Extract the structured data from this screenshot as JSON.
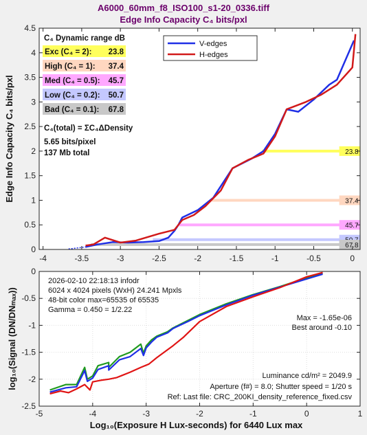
{
  "title_line1": "A6000_60mm_f8_ISO100_s1-20_0336.tiff",
  "title_line2": "Edge Info Capacity C₄ bits/pxl",
  "chart_data": [
    {
      "type": "line",
      "ylabel": "Edge Info Capacity C₄ bits/pxl",
      "xlim": [
        -4.05,
        0.1
      ],
      "ylim": [
        0,
        4.5
      ],
      "xticks": [
        "-4",
        "-3.5",
        "-3",
        "-2.5",
        "-2",
        "-1.5",
        "-1",
        "-0.5",
        "0"
      ],
      "yticks": [
        "0",
        "0.5",
        "1",
        "1.5",
        "2",
        "2.5",
        "3",
        "3.5",
        "4",
        "4.5"
      ],
      "legend": {
        "position": "top-right",
        "entries": [
          "V-edges",
          "H-edges"
        ]
      },
      "series": [
        {
          "name": "V-edges",
          "color": "#1f2fe6",
          "x": [
            -3.45,
            -3.3,
            -3.1,
            -2.9,
            -2.7,
            -2.5,
            -2.38,
            -2.3,
            -2.25,
            -2.2,
            -2.0,
            -1.8,
            -1.55,
            -1.3,
            -1.15,
            -1.0,
            -0.85,
            -0.7,
            -0.5,
            -0.3,
            -0.2,
            0.02
          ],
          "y": [
            0.05,
            0.1,
            0.15,
            0.14,
            0.15,
            0.17,
            0.24,
            0.38,
            0.5,
            0.65,
            0.8,
            1.05,
            1.65,
            1.85,
            2.0,
            2.35,
            2.85,
            2.8,
            3.05,
            3.35,
            3.45,
            4.25
          ]
        },
        {
          "name": "H-edges",
          "color": "#d11a1a",
          "x": [
            -3.45,
            -3.35,
            -3.2,
            -3.0,
            -2.8,
            -2.5,
            -2.3,
            -2.2,
            -2.05,
            -1.9,
            -1.7,
            -1.55,
            -1.35,
            -1.15,
            -1.0,
            -0.85,
            -0.6,
            -0.4,
            -0.2,
            0.0,
            0.04
          ],
          "y": [
            0.08,
            0.1,
            0.24,
            0.14,
            0.18,
            0.32,
            0.4,
            0.6,
            0.7,
            0.88,
            1.2,
            1.65,
            1.82,
            1.95,
            2.3,
            2.85,
            3.0,
            3.15,
            3.35,
            3.7,
            4.38
          ]
        }
      ],
      "dynamic_range": {
        "heading": "C₄ Dynamic range dB",
        "rows": [
          {
            "label": "Exc  (C₄ = 2):",
            "value": "23.8",
            "color": "#ffff5c",
            "level": 2,
            "x_start": -1.17
          },
          {
            "label": "High (C₄ = 1):",
            "value": "37.4",
            "color": "#ffd7c0",
            "level": 1,
            "x_start": -1.82
          },
          {
            "label": "Med  (C₄ = 0.5):",
            "value": "45.7",
            "color": "#ffa8ff",
            "level": 0.5,
            "x_start": -2.24
          },
          {
            "label": "Low  (C₄ = 0.2):",
            "value": "50.7",
            "color": "#c4c8ff",
            "level": 0.2,
            "x_start": -2.58
          },
          {
            "label": "Bad  (C₄ = 0.1):",
            "value": "67.8",
            "color": "#c8c8c8",
            "level": 0.1,
            "x_start": -3.38
          }
        ]
      },
      "c4_total": {
        "heading": "C₄(total) = ΣC₄ΔDensity",
        "bits": "5.65 bits/pixel",
        "mb": "137 Mb total"
      }
    },
    {
      "type": "line",
      "ylabel": "log₁₀(Signal (DN/DNₘₐₓ))",
      "xlabel": "Log₁₀(Exposure H Lux-seconds)  for 6440 Lux max",
      "xlim": [
        -5,
        1
      ],
      "ylim": [
        -2.5,
        0
      ],
      "xticks": [
        "-5",
        "-4",
        "-3",
        "-2",
        "-1",
        "0",
        "1"
      ],
      "yticks": [
        "-2.5",
        "-2",
        "-1.5",
        "-1",
        "-0.5",
        "0"
      ],
      "series": [
        {
          "name": "",
          "color": "#1f9a1f",
          "x": [
            -4.8,
            -4.5,
            -4.3,
            -4.15,
            -4.1,
            -4.0,
            -3.9,
            -3.7,
            -3.7,
            -3.5,
            -3.3,
            -3.1,
            -3.05,
            -3.0,
            -2.9,
            -2.8,
            -2.6,
            -2.5,
            -2.2,
            -2.0,
            -1.5,
            -1.0,
            -0.5,
            0.0,
            0.3
          ],
          "y": [
            -2.2,
            -2.1,
            -2.1,
            -1.78,
            -2.0,
            -1.94,
            -1.75,
            -1.69,
            -1.78,
            -1.58,
            -1.5,
            -1.35,
            -1.52,
            -1.38,
            -1.27,
            -1.2,
            -1.12,
            -1.05,
            -0.9,
            -0.8,
            -0.6,
            -0.43,
            -0.28,
            -0.12,
            -0.03
          ]
        },
        {
          "name": "",
          "color": "#1f2fe6",
          "x": [
            -4.8,
            -4.5,
            -4.3,
            -4.15,
            -4.1,
            -4.0,
            -3.9,
            -3.7,
            -3.7,
            -3.5,
            -3.3,
            -3.1,
            -3.05,
            -3.0,
            -2.9,
            -2.8,
            -2.6,
            -2.5,
            -2.2,
            -2.0,
            -1.5,
            -1.0,
            -0.5,
            0.0,
            0.3
          ],
          "y": [
            -2.24,
            -2.16,
            -2.14,
            -1.84,
            -2.04,
            -1.98,
            -1.82,
            -1.75,
            -1.83,
            -1.64,
            -1.58,
            -1.43,
            -1.56,
            -1.42,
            -1.31,
            -1.22,
            -1.14,
            -1.06,
            -0.92,
            -0.82,
            -0.62,
            -0.44,
            -0.29,
            -0.14,
            -0.05
          ]
        },
        {
          "name": "",
          "color": "#e01414",
          "x": [
            -4.8,
            -4.6,
            -4.45,
            -4.3,
            -4.15,
            -4.05,
            -4.0,
            -3.85,
            -3.7,
            -3.55,
            -3.45,
            -3.3,
            -3.1,
            -2.95,
            -2.8,
            -2.5,
            -2.3,
            -2.0,
            -1.5,
            -1.0,
            -0.5,
            0.0,
            0.3
          ],
          "y": [
            -2.27,
            -2.22,
            -2.25,
            -2.18,
            -2.1,
            -2.2,
            -2.05,
            -2.02,
            -2.0,
            -1.97,
            -1.93,
            -1.87,
            -1.78,
            -1.72,
            -1.6,
            -1.38,
            -1.22,
            -0.93,
            -0.65,
            -0.47,
            -0.3,
            -0.1,
            -0.02
          ]
        }
      ],
      "annotations": {
        "info": [
          "2026-02-10 22:18:13   infodr",
          "6024 x 4024 pixels (WxH)   24.241 Mpxls",
          "48-bit color  max=65535 of 65535",
          "Gamma = 0.450 = 1/2.22"
        ],
        "max": "Max = -1.65e-06",
        "best": "Best around -0.10",
        "luminance": "Luminance cd/m² = 2049.9",
        "aperture": "Aperture (f#) = 8.0;  Shutter speed = 1/20 s",
        "ref": "Ref: Last file: CRC_200KI_density_reference_fixed.csv"
      }
    }
  ]
}
